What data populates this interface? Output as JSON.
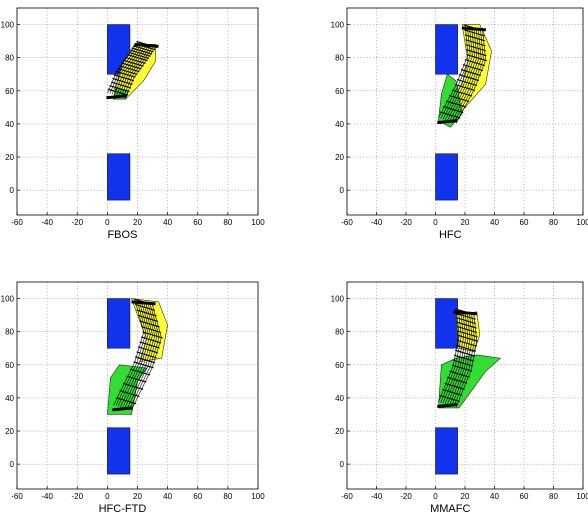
{
  "chart_data": [
    {
      "type": "scatter",
      "xlabel": "FBOS",
      "xlim": [
        -60,
        100
      ],
      "ylim": [
        -15,
        110
      ],
      "xticks": [
        -60,
        -40,
        -20,
        0,
        20,
        40,
        60,
        80,
        100
      ],
      "yticks": [
        0,
        20,
        40,
        60,
        80,
        100
      ],
      "grid": true,
      "obstacles": [
        {
          "x0": 0,
          "x1": 15,
          "y0": 70,
          "y1": 100,
          "color": "#1133ee"
        },
        {
          "x0": 0,
          "x1": 15,
          "y0": -6,
          "y1": 22,
          "color": "#1133ee"
        }
      ],
      "yellow_region": [
        [
          10,
          76
        ],
        [
          18,
          88
        ],
        [
          32,
          88
        ],
        [
          32,
          78
        ],
        [
          24,
          66
        ],
        [
          12,
          55
        ],
        [
          4,
          55
        ],
        [
          6,
          64
        ]
      ],
      "green_region": [
        [
          4,
          55
        ],
        [
          12,
          55
        ],
        [
          14,
          60
        ],
        [
          6,
          62
        ]
      ],
      "trajectory_bundle": {
        "x": [
          26,
          20,
          12,
          6
        ],
        "y": [
          88,
          80,
          70,
          57
        ]
      }
    },
    {
      "type": "scatter",
      "xlabel": "HFC",
      "xlim": [
        -60,
        100
      ],
      "ylim": [
        -15,
        110
      ],
      "xticks": [
        -60,
        -40,
        -20,
        0,
        20,
        40,
        60,
        80,
        100
      ],
      "yticks": [
        0,
        20,
        40,
        60,
        80,
        100
      ],
      "grid": true,
      "obstacles": [
        {
          "x0": 0,
          "x1": 15,
          "y0": 70,
          "y1": 100,
          "color": "#1133ee"
        },
        {
          "x0": 0,
          "x1": 15,
          "y0": -6,
          "y1": 22,
          "color": "#1133ee"
        }
      ],
      "yellow_region": [
        [
          18,
          100
        ],
        [
          30,
          100
        ],
        [
          38,
          84
        ],
        [
          34,
          64
        ],
        [
          20,
          50
        ],
        [
          12,
          42
        ],
        [
          8,
          52
        ],
        [
          18,
          64
        ],
        [
          22,
          78
        ]
      ],
      "green_region": [
        [
          2,
          42
        ],
        [
          10,
          38
        ],
        [
          18,
          46
        ],
        [
          14,
          66
        ],
        [
          8,
          70
        ],
        [
          4,
          58
        ]
      ],
      "trajectory_bundle": {
        "x": [
          26,
          28,
          20,
          8
        ],
        "y": [
          98,
          80,
          62,
          42
        ]
      }
    },
    {
      "type": "scatter",
      "xlabel": "HFC-FTD",
      "xlim": [
        -60,
        100
      ],
      "ylim": [
        -15,
        110
      ],
      "xticks": [
        -60,
        -40,
        -20,
        0,
        20,
        40,
        60,
        80,
        100
      ],
      "yticks": [
        0,
        20,
        40,
        60,
        80,
        100
      ],
      "grid": true,
      "obstacles": [
        {
          "x0": 0,
          "x1": 15,
          "y0": 70,
          "y1": 100,
          "color": "#1133ee"
        },
        {
          "x0": 0,
          "x1": 15,
          "y0": -6,
          "y1": 22,
          "color": "#1133ee"
        }
      ],
      "yellow_region": [
        [
          16,
          100
        ],
        [
          34,
          98
        ],
        [
          40,
          84
        ],
        [
          36,
          64
        ],
        [
          22,
          62
        ],
        [
          26,
          76
        ],
        [
          20,
          90
        ]
      ],
      "green_region": [
        [
          0,
          30
        ],
        [
          16,
          30
        ],
        [
          20,
          50
        ],
        [
          26,
          58
        ],
        [
          8,
          60
        ],
        [
          2,
          52
        ]
      ],
      "trajectory_bundle": {
        "x": [
          24,
          30,
          24,
          10
        ],
        "y": [
          98,
          78,
          60,
          34
        ]
      }
    },
    {
      "type": "scatter",
      "xlabel": "MMAFC",
      "xlim": [
        -60,
        100
      ],
      "ylim": [
        -15,
        110
      ],
      "xticks": [
        -60,
        -40,
        -20,
        0,
        20,
        40,
        60,
        80,
        100
      ],
      "yticks": [
        0,
        20,
        40,
        60,
        80,
        100
      ],
      "grid": true,
      "obstacles": [
        {
          "x0": 0,
          "x1": 15,
          "y0": 70,
          "y1": 100,
          "color": "#1133ee"
        },
        {
          "x0": 0,
          "x1": 15,
          "y0": -6,
          "y1": 22,
          "color": "#1133ee"
        }
      ],
      "yellow_region": [
        [
          14,
          90
        ],
        [
          28,
          92
        ],
        [
          30,
          78
        ],
        [
          26,
          68
        ],
        [
          16,
          70
        ]
      ],
      "green_region": [
        [
          2,
          34
        ],
        [
          16,
          34
        ],
        [
          34,
          56
        ],
        [
          44,
          64
        ],
        [
          28,
          66
        ],
        [
          14,
          64
        ],
        [
          4,
          60
        ]
      ],
      "trajectory_bundle": {
        "x": [
          20,
          22,
          18,
          8
        ],
        "y": [
          92,
          76,
          58,
          36
        ]
      }
    }
  ]
}
